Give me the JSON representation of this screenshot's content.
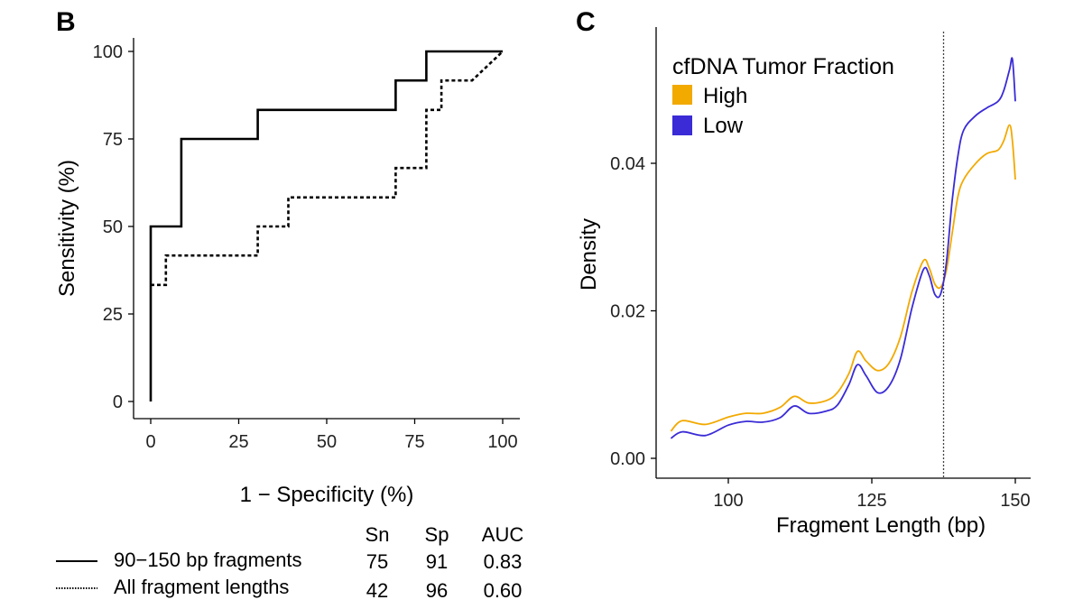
{
  "colors": {
    "high": "#F2A900",
    "low": "#3A2BD6",
    "axis": "#000000"
  },
  "chart_data": [
    {
      "panel": "B",
      "type": "line",
      "xlabel": "1 − Specificity (%)",
      "ylabel": "Sensitivity (%)",
      "xlim": [
        0,
        100
      ],
      "ylim": [
        0,
        100
      ],
      "xticks": [
        0,
        25,
        50,
        75,
        100
      ],
      "yticks": [
        0,
        25,
        50,
        75,
        100
      ],
      "grid": false,
      "series": [
        {
          "name": "90−150 bp fragments",
          "line_style": "solid",
          "points": [
            [
              0,
              0
            ],
            [
              0,
              50
            ],
            [
              8.7,
              50
            ],
            [
              8.7,
              75
            ],
            [
              30.4,
              75
            ],
            [
              30.4,
              83.3
            ],
            [
              69.6,
              83.3
            ],
            [
              69.6,
              91.7
            ],
            [
              78.3,
              91.7
            ],
            [
              78.3,
              100
            ],
            [
              100,
              100
            ]
          ]
        },
        {
          "name": "All fragment lengths",
          "line_style": "dotted",
          "points": [
            [
              0,
              33.3
            ],
            [
              4.3,
              33.3
            ],
            [
              4.3,
              41.7
            ],
            [
              30.4,
              41.7
            ],
            [
              30.4,
              50
            ],
            [
              39.1,
              50
            ],
            [
              39.1,
              58.3
            ],
            [
              69.6,
              58.3
            ],
            [
              69.6,
              66.7
            ],
            [
              78.3,
              66.7
            ],
            [
              78.3,
              83.3
            ],
            [
              82.6,
              83.3
            ],
            [
              82.6,
              91.7
            ],
            [
              91.3,
              91.7
            ],
            [
              100,
              100
            ]
          ]
        }
      ],
      "summary_table": {
        "headers": [
          "Sn",
          "Sp",
          "AUC"
        ],
        "rows": [
          {
            "label": "90−150 bp fragments",
            "line_style": "solid",
            "values": [
              "75",
              "91",
              "0.83"
            ]
          },
          {
            "label": "All fragment lengths",
            "line_style": "dotted",
            "values": [
              "42",
              "96",
              "0.60"
            ]
          }
        ]
      }
    },
    {
      "panel": "C",
      "type": "line",
      "xlabel": "Fragment Length (bp)",
      "ylabel": "Density",
      "xlim": [
        90,
        150
      ],
      "ylim": [
        0,
        0.055
      ],
      "xticks": [
        100,
        125,
        150
      ],
      "yticks": [
        0.0,
        0.02,
        0.04
      ],
      "ytick_labels": [
        "0.00",
        "0.02",
        "0.04"
      ],
      "grid": false,
      "reference_line": {
        "x": 137.5,
        "style": "dotted"
      },
      "legend": {
        "title": "cfDNA Tumor Fraction",
        "placement": "top-left"
      },
      "series": [
        {
          "name": "High",
          "points": [
            [
              90,
              0.0037
            ],
            [
              92,
              0.0051
            ],
            [
              96,
              0.0046
            ],
            [
              100,
              0.0056
            ],
            [
              103,
              0.0061
            ],
            [
              106,
              0.0061
            ],
            [
              109,
              0.0069
            ],
            [
              111.5,
              0.0084
            ],
            [
              114,
              0.0075
            ],
            [
              117,
              0.0078
            ],
            [
              119,
              0.0089
            ],
            [
              121,
              0.0115
            ],
            [
              122.5,
              0.0145
            ],
            [
              124,
              0.0132
            ],
            [
              126,
              0.0119
            ],
            [
              128,
              0.0129
            ],
            [
              130,
              0.0165
            ],
            [
              132,
              0.0226
            ],
            [
              134,
              0.0268
            ],
            [
              135,
              0.0258
            ],
            [
              136,
              0.0236
            ],
            [
              137,
              0.0232
            ],
            [
              138,
              0.0255
            ],
            [
              139,
              0.0305
            ],
            [
              140,
              0.0355
            ],
            [
              141,
              0.0378
            ],
            [
              143,
              0.0399
            ],
            [
              145,
              0.0413
            ],
            [
              147,
              0.0418
            ],
            [
              148,
              0.0431
            ],
            [
              149,
              0.0452
            ],
            [
              149.5,
              0.043
            ],
            [
              150,
              0.0378
            ]
          ]
        },
        {
          "name": "Low",
          "points": [
            [
              90,
              0.0027
            ],
            [
              92,
              0.0036
            ],
            [
              96,
              0.0031
            ],
            [
              100,
              0.0045
            ],
            [
              103,
              0.005
            ],
            [
              106,
              0.0049
            ],
            [
              109,
              0.0055
            ],
            [
              111.5,
              0.0071
            ],
            [
              114,
              0.0061
            ],
            [
              117,
              0.0064
            ],
            [
              119,
              0.0072
            ],
            [
              121,
              0.01
            ],
            [
              122.5,
              0.0127
            ],
            [
              124,
              0.0112
            ],
            [
              126,
              0.0089
            ],
            [
              128,
              0.0098
            ],
            [
              130,
              0.0135
            ],
            [
              132,
              0.0204
            ],
            [
              134,
              0.0256
            ],
            [
              135,
              0.0248
            ],
            [
              136,
              0.0222
            ],
            [
              137,
              0.0223
            ],
            [
              138,
              0.0266
            ],
            [
              139,
              0.0349
            ],
            [
              140,
              0.041
            ],
            [
              141,
              0.0445
            ],
            [
              143,
              0.0464
            ],
            [
              145,
              0.0475
            ],
            [
              147,
              0.0484
            ],
            [
              148,
              0.0499
            ],
            [
              149,
              0.0527
            ],
            [
              149.5,
              0.0541
            ],
            [
              150,
              0.0484
            ]
          ]
        }
      ]
    }
  ]
}
